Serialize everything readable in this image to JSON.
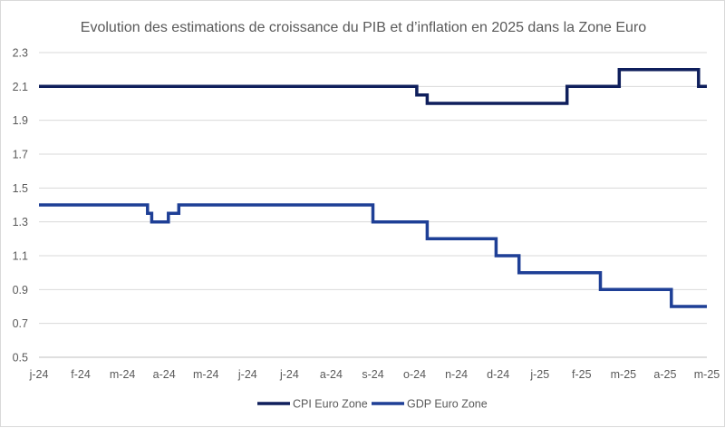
{
  "chart_data": {
    "type": "line",
    "title": "Evolution des estimations de croissance du PIB et d’inflation en 2025 dans la Zone Euro",
    "xlabel": "",
    "ylabel": "",
    "ylim": [
      0.5,
      2.3
    ],
    "yticks": [
      "0.5",
      "0.7",
      "0.9",
      "1.1",
      "1.3",
      "1.5",
      "1.7",
      "1.9",
      "2.1",
      "2.3"
    ],
    "x_tick_labels": [
      "j-24",
      "f-24",
      "m-24",
      "a-24",
      "m-24",
      "j-24",
      "j-24",
      "a-24",
      "s-24",
      "o-24",
      "n-24",
      "d-24",
      "j-25",
      "f-25",
      "m-25",
      "a-25",
      "m-25"
    ],
    "x_range": [
      0,
      16
    ],
    "grid": true,
    "legend_position": "bottom",
    "series": [
      {
        "name": "CPI Euro Zone",
        "color": "#0f1f5c",
        "x": [
          0,
          9.05,
          9.05,
          9.15,
          9.15,
          9.3,
          9.3,
          12.65,
          12.65,
          13.9,
          13.9,
          15.8,
          15.8,
          16
        ],
        "y": [
          2.1,
          2.1,
          2.05,
          2.05,
          2.05,
          2.05,
          2.0,
          2.0,
          2.1,
          2.1,
          2.2,
          2.2,
          2.1,
          2.1
        ]
      },
      {
        "name": "GDP Euro Zone",
        "color": "#1e3f96",
        "x": [
          0,
          2.6,
          2.6,
          2.7,
          2.7,
          3.1,
          3.1,
          3.35,
          3.35,
          8.0,
          8.0,
          9.3,
          9.3,
          10.95,
          10.95,
          11.5,
          11.5,
          13.45,
          13.45,
          15.15,
          15.15,
          16
        ],
        "y": [
          1.4,
          1.4,
          1.35,
          1.35,
          1.3,
          1.3,
          1.35,
          1.35,
          1.4,
          1.4,
          1.3,
          1.3,
          1.2,
          1.2,
          1.1,
          1.1,
          1.0,
          1.0,
          0.9,
          0.9,
          0.8,
          0.8
        ]
      }
    ]
  }
}
